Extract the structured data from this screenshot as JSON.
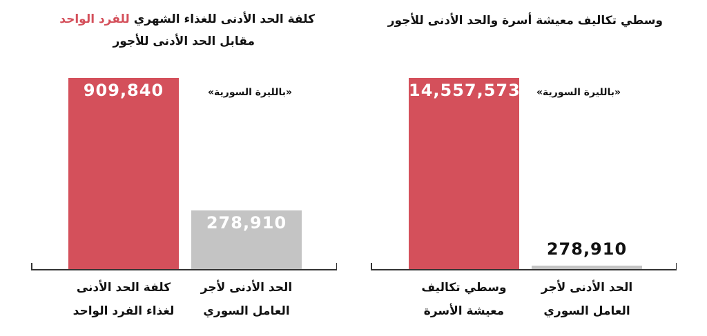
{
  "chart_data": [
    {
      "type": "bar",
      "title": "كلفة الحد الأدنى للغذاء الشهري",
      "title_highlight": "للفرد الواحد",
      "subtitle": "مقابل الحد الأدنى للأجور",
      "annotation": "«بالليرة السورية»",
      "categories": [
        "كلفة الحد الأدنى لغذاء الفرد الواحد",
        "الحد الأدنى لأجر العامل السوري"
      ],
      "values": [
        909840,
        278910
      ],
      "value_labels": [
        "909,840",
        "278,910"
      ],
      "colors": [
        "#d4505b",
        "#c4c4c4"
      ],
      "highlight_color": "#d4505b"
    },
    {
      "type": "bar",
      "title": "وسطي تكاليف معيشة أسرة والحد الأدنى للأجور",
      "annotation": "«بالليرة السورية»",
      "categories": [
        "وسطي تكاليف معيشة الأسرة",
        "الحد الأدنى لأجر العامل السوري"
      ],
      "values": [
        14557573,
        278910
      ],
      "value_labels": [
        "14,557,573",
        "278,910"
      ],
      "colors": [
        "#d4505b",
        "#c4c4c4"
      ]
    }
  ]
}
